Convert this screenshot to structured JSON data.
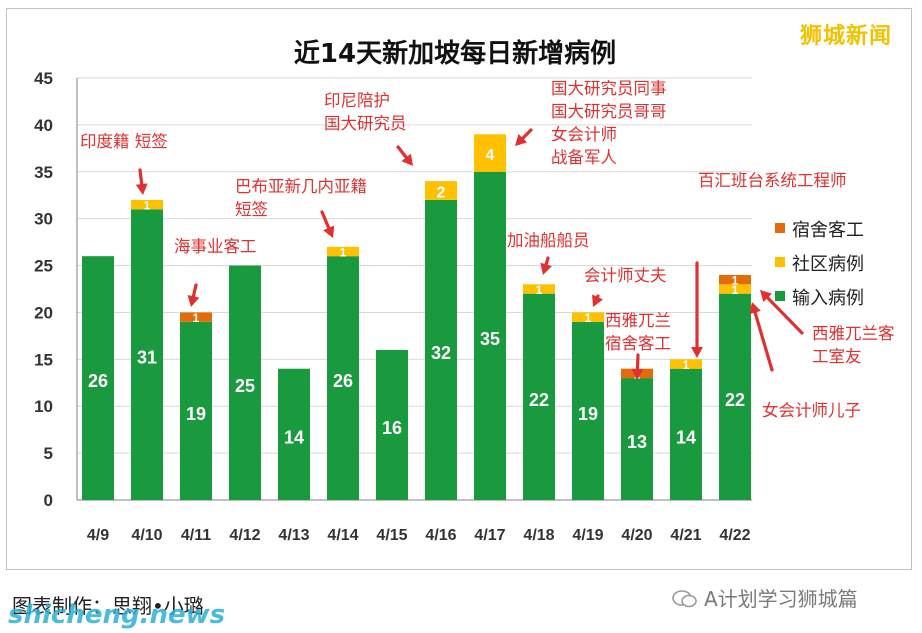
{
  "watermark_top_right": "狮城新闻",
  "footer": {
    "credit": "图表制作：思翔•小璐",
    "brand": "A计划学习狮城篇",
    "site": "shicheng.news"
  },
  "colors": {
    "imported": "#1a9a3f",
    "community": "#ffc000",
    "dormitory": "#e36c0a",
    "annotation": "#e03030",
    "axis": "#333333"
  },
  "chart_data": {
    "type": "bar",
    "stacked": true,
    "title": "近14天新加坡每日新增病例",
    "xlabel": "",
    "ylabel": "",
    "ylim": [
      0,
      45
    ],
    "yticks": [
      0,
      5,
      10,
      15,
      20,
      25,
      30,
      35,
      40,
      45
    ],
    "grid": true,
    "legend_position": "right",
    "categories": [
      "4/9",
      "4/10",
      "4/11",
      "4/12",
      "4/13",
      "4/14",
      "4/15",
      "4/16",
      "4/17",
      "4/18",
      "4/19",
      "4/20",
      "4/21",
      "4/22"
    ],
    "series": [
      {
        "name": "输入病例",
        "color": "#1a9a3f",
        "values": [
          26,
          31,
          19,
          25,
          14,
          26,
          16,
          32,
          35,
          22,
          19,
          13,
          14,
          22
        ]
      },
      {
        "name": "社区病例",
        "color": "#ffc000",
        "values": [
          0,
          1,
          0,
          0,
          0,
          1,
          0,
          2,
          4,
          1,
          1,
          0,
          1,
          1
        ]
      },
      {
        "name": "宿舍客工",
        "color": "#e36c0a",
        "values": [
          0,
          0,
          1,
          0,
          0,
          0,
          0,
          0,
          0,
          0,
          0,
          1,
          0,
          1
        ]
      }
    ],
    "legend_order": [
      "宿舍客工",
      "社区病例",
      "输入病例"
    ],
    "annotations": [
      {
        "category": "4/10",
        "lines": [
          "印度籍 短签"
        ]
      },
      {
        "category": "4/11",
        "lines": [
          "海事业客工"
        ]
      },
      {
        "category": "4/14",
        "lines": [
          "巴布亚新几内亚籍",
          "短签"
        ]
      },
      {
        "category": "4/16",
        "lines": [
          "印尼陪护",
          "国大研究员"
        ]
      },
      {
        "category": "4/17",
        "lines": [
          "国大研究员同事",
          "国大研究员哥哥",
          "女会计师",
          "战备军人"
        ]
      },
      {
        "category": "4/18",
        "lines": [
          "加油船船员"
        ]
      },
      {
        "category": "4/19",
        "lines": [
          "会计师丈夫"
        ]
      },
      {
        "category": "4/20",
        "lines": [
          "西雅兀兰",
          "宿舍客工"
        ]
      },
      {
        "category": "4/21",
        "lines": [
          "百汇班台系统工程师"
        ]
      },
      {
        "category": "4/22",
        "lines": [
          "西雅兀兰客",
          "工室友"
        ]
      },
      {
        "category": "4/22",
        "lines": [
          "女会计师儿子"
        ]
      }
    ]
  }
}
